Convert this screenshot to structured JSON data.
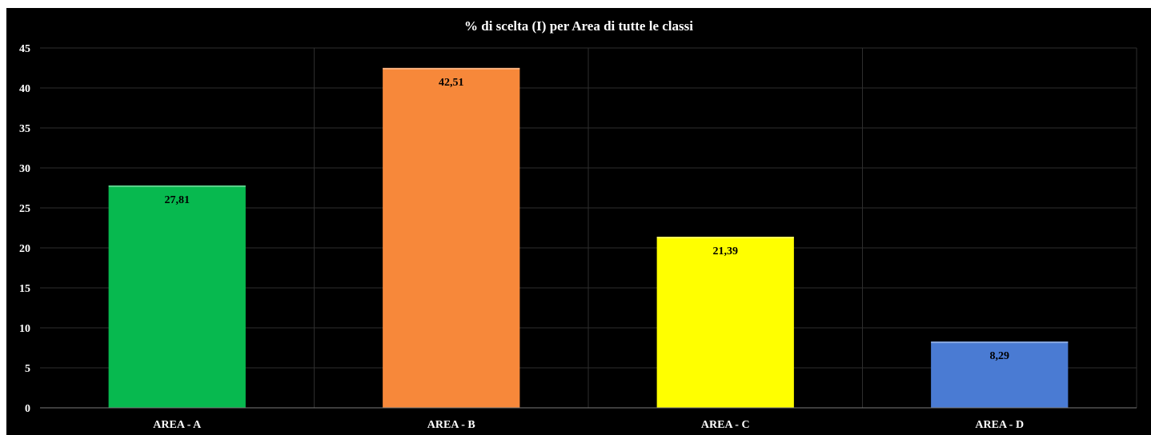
{
  "chart_data": {
    "type": "bar",
    "title": "% di scelta (I) per Area di tutte le classi",
    "xlabel": "",
    "ylabel": "",
    "categories": [
      "AREA - A",
      "AREA - B",
      "AREA - C",
      "AREA - D"
    ],
    "values": [
      27.81,
      42.51,
      21.39,
      8.29
    ],
    "data_labels": [
      "27,81",
      "42,51",
      "21,39",
      "8,29"
    ],
    "bar_colors": [
      "#07b94f",
      "#f7883a",
      "#ffff00",
      "#4a7bd3"
    ],
    "ylim": [
      0,
      45
    ],
    "yticks": [
      0,
      5,
      10,
      15,
      20,
      25,
      30,
      35,
      40,
      45
    ],
    "grid": true,
    "legend": "none",
    "background": "#000000",
    "text_color": "#ffffff"
  }
}
